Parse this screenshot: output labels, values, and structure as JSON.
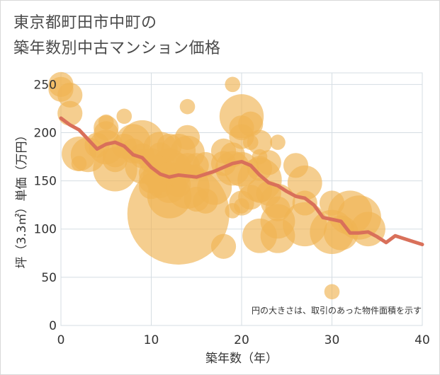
{
  "title_lines": [
    "東京都町田市中町の",
    "築年数別中古マンション価格"
  ],
  "colors": {
    "bubble": "#f0b453",
    "line": "#d9705a",
    "grid": "#d5dde3"
  },
  "chart_data": {
    "type": "scatter",
    "title": "東京都町田市中町の築年数別中古マンション価格",
    "xlabel": "築年数（年）",
    "ylabel": "坪（3.3㎡）単価（万円）",
    "xlim": [
      0,
      40
    ],
    "ylim": [
      0,
      262
    ],
    "x_ticks": [
      0,
      10,
      20,
      30,
      40
    ],
    "y_ticks": [
      0,
      50,
      100,
      150,
      200,
      250
    ],
    "annotation": "円の大きさは、取引のあった物件面積を示す",
    "grid": true,
    "bubbles": [
      {
        "x": 0,
        "y": 250,
        "s": 2
      },
      {
        "x": 0,
        "y": 245,
        "s": 2
      },
      {
        "x": 1,
        "y": 239,
        "s": 2
      },
      {
        "x": 1,
        "y": 220,
        "s": 2
      },
      {
        "x": 2,
        "y": 178,
        "s": 3
      },
      {
        "x": 2,
        "y": 168,
        "s": 1
      },
      {
        "x": 3,
        "y": 177,
        "s": 3
      },
      {
        "x": 4,
        "y": 187,
        "s": 2
      },
      {
        "x": 5,
        "y": 211,
        "s": 1
      },
      {
        "x": 5,
        "y": 205,
        "s": 2
      },
      {
        "x": 5,
        "y": 199,
        "s": 2
      },
      {
        "x": 5,
        "y": 185,
        "s": 3
      },
      {
        "x": 6,
        "y": 177,
        "s": 2
      },
      {
        "x": 6,
        "y": 172,
        "s": 2
      },
      {
        "x": 6,
        "y": 162,
        "s": 4
      },
      {
        "x": 7,
        "y": 217,
        "s": 1
      },
      {
        "x": 7,
        "y": 186,
        "s": 2
      },
      {
        "x": 8,
        "y": 191,
        "s": 3
      },
      {
        "x": 8,
        "y": 181,
        "s": 2
      },
      {
        "x": 9,
        "y": 190,
        "s": 4
      },
      {
        "x": 9,
        "y": 176,
        "s": 2
      },
      {
        "x": 9,
        "y": 165,
        "s": 3
      },
      {
        "x": 10,
        "y": 171,
        "s": 2
      },
      {
        "x": 10,
        "y": 158,
        "s": 2
      },
      {
        "x": 10,
        "y": 150,
        "s": 2
      },
      {
        "x": 10,
        "y": 144,
        "s": 2
      },
      {
        "x": 11,
        "y": 183,
        "s": 3
      },
      {
        "x": 11,
        "y": 177,
        "s": 2
      },
      {
        "x": 11,
        "y": 164,
        "s": 2
      },
      {
        "x": 11,
        "y": 156,
        "s": 3
      },
      {
        "x": 11,
        "y": 145,
        "s": 2
      },
      {
        "x": 12,
        "y": 186,
        "s": 2
      },
      {
        "x": 12,
        "y": 166,
        "s": 3
      },
      {
        "x": 12,
        "y": 157,
        "s": 2
      },
      {
        "x": 12,
        "y": 145,
        "s": 3
      },
      {
        "x": 12,
        "y": 134,
        "s": 4
      },
      {
        "x": 13,
        "y": 181,
        "s": 3
      },
      {
        "x": 13,
        "y": 166,
        "s": 2
      },
      {
        "x": 13,
        "y": 156,
        "s": 2
      },
      {
        "x": 13,
        "y": 146,
        "s": 2
      },
      {
        "x": 13,
        "y": 116,
        "s": 10
      },
      {
        "x": 14,
        "y": 227,
        "s": 1
      },
      {
        "x": 14,
        "y": 195,
        "s": 2
      },
      {
        "x": 14,
        "y": 179,
        "s": 3
      },
      {
        "x": 14,
        "y": 166,
        "s": 2
      },
      {
        "x": 14,
        "y": 144,
        "s": 4
      },
      {
        "x": 15,
        "y": 166,
        "s": 2
      },
      {
        "x": 15,
        "y": 159,
        "s": 1
      },
      {
        "x": 15,
        "y": 131,
        "s": 2
      },
      {
        "x": 16,
        "y": 167,
        "s": 2
      },
      {
        "x": 16,
        "y": 129,
        "s": 2
      },
      {
        "x": 17,
        "y": 143,
        "s": 3
      },
      {
        "x": 18,
        "y": 181,
        "s": 2
      },
      {
        "x": 18,
        "y": 168,
        "s": 2
      },
      {
        "x": 18,
        "y": 82,
        "s": 2
      },
      {
        "x": 19,
        "y": 250,
        "s": 1
      },
      {
        "x": 19,
        "y": 177,
        "s": 2
      },
      {
        "x": 19,
        "y": 163,
        "s": 3
      },
      {
        "x": 19,
        "y": 119,
        "s": 1
      },
      {
        "x": 20,
        "y": 217,
        "s": 4
      },
      {
        "x": 20,
        "y": 205,
        "s": 2
      },
      {
        "x": 20,
        "y": 196,
        "s": 2
      },
      {
        "x": 20,
        "y": 162,
        "s": 3
      },
      {
        "x": 20,
        "y": 127,
        "s": 2
      },
      {
        "x": 20,
        "y": 124,
        "s": 1
      },
      {
        "x": 21,
        "y": 209,
        "s": 2
      },
      {
        "x": 21,
        "y": 190,
        "s": 1
      },
      {
        "x": 21,
        "y": 133,
        "s": 2
      },
      {
        "x": 22,
        "y": 190,
        "s": 2
      },
      {
        "x": 22,
        "y": 175,
        "s": 1
      },
      {
        "x": 22,
        "y": 163,
        "s": 2
      },
      {
        "x": 22,
        "y": 151,
        "s": 4
      },
      {
        "x": 22,
        "y": 140,
        "s": 2
      },
      {
        "x": 22,
        "y": 93,
        "s": 3
      },
      {
        "x": 23,
        "y": 169,
        "s": 2
      },
      {
        "x": 23,
        "y": 137,
        "s": 2
      },
      {
        "x": 24,
        "y": 190,
        "s": 1
      },
      {
        "x": 24,
        "y": 129,
        "s": 3
      },
      {
        "x": 24,
        "y": 121,
        "s": 2
      },
      {
        "x": 24,
        "y": 108,
        "s": 3
      },
      {
        "x": 24,
        "y": 93,
        "s": 3
      },
      {
        "x": 26,
        "y": 166,
        "s": 2
      },
      {
        "x": 27,
        "y": 148,
        "s": 3
      },
      {
        "x": 27,
        "y": 127,
        "s": 2
      },
      {
        "x": 27,
        "y": 105,
        "s": 4
      },
      {
        "x": 30,
        "y": 127,
        "s": 2
      },
      {
        "x": 30,
        "y": 97,
        "s": 4
      },
      {
        "x": 30,
        "y": 35,
        "s": 1
      },
      {
        "x": 31,
        "y": 96,
        "s": 3
      },
      {
        "x": 32,
        "y": 117,
        "s": 4
      },
      {
        "x": 33,
        "y": 112,
        "s": 4
      },
      {
        "x": 34,
        "y": 100,
        "s": 3
      }
    ],
    "series": [
      {
        "type": "line",
        "x": [
          0,
          1,
          2,
          3,
          4,
          5,
          6,
          7,
          8,
          9,
          10,
          11,
          12,
          13,
          14,
          15,
          16,
          17,
          18,
          19,
          20,
          21,
          22,
          23,
          24,
          25,
          26,
          27,
          28,
          29,
          30,
          31,
          32,
          33,
          34,
          35,
          36,
          37,
          38,
          39,
          40
        ],
        "y": [
          215,
          208,
          203,
          193,
          183,
          188,
          190,
          186,
          177,
          174,
          164,
          157,
          154,
          156,
          155,
          154,
          157,
          160,
          164,
          168,
          170,
          166,
          156,
          148,
          145,
          139,
          134,
          132,
          125,
          112,
          110,
          108,
          96,
          96,
          97,
          92,
          86,
          93,
          90,
          87,
          84
        ]
      }
    ]
  }
}
